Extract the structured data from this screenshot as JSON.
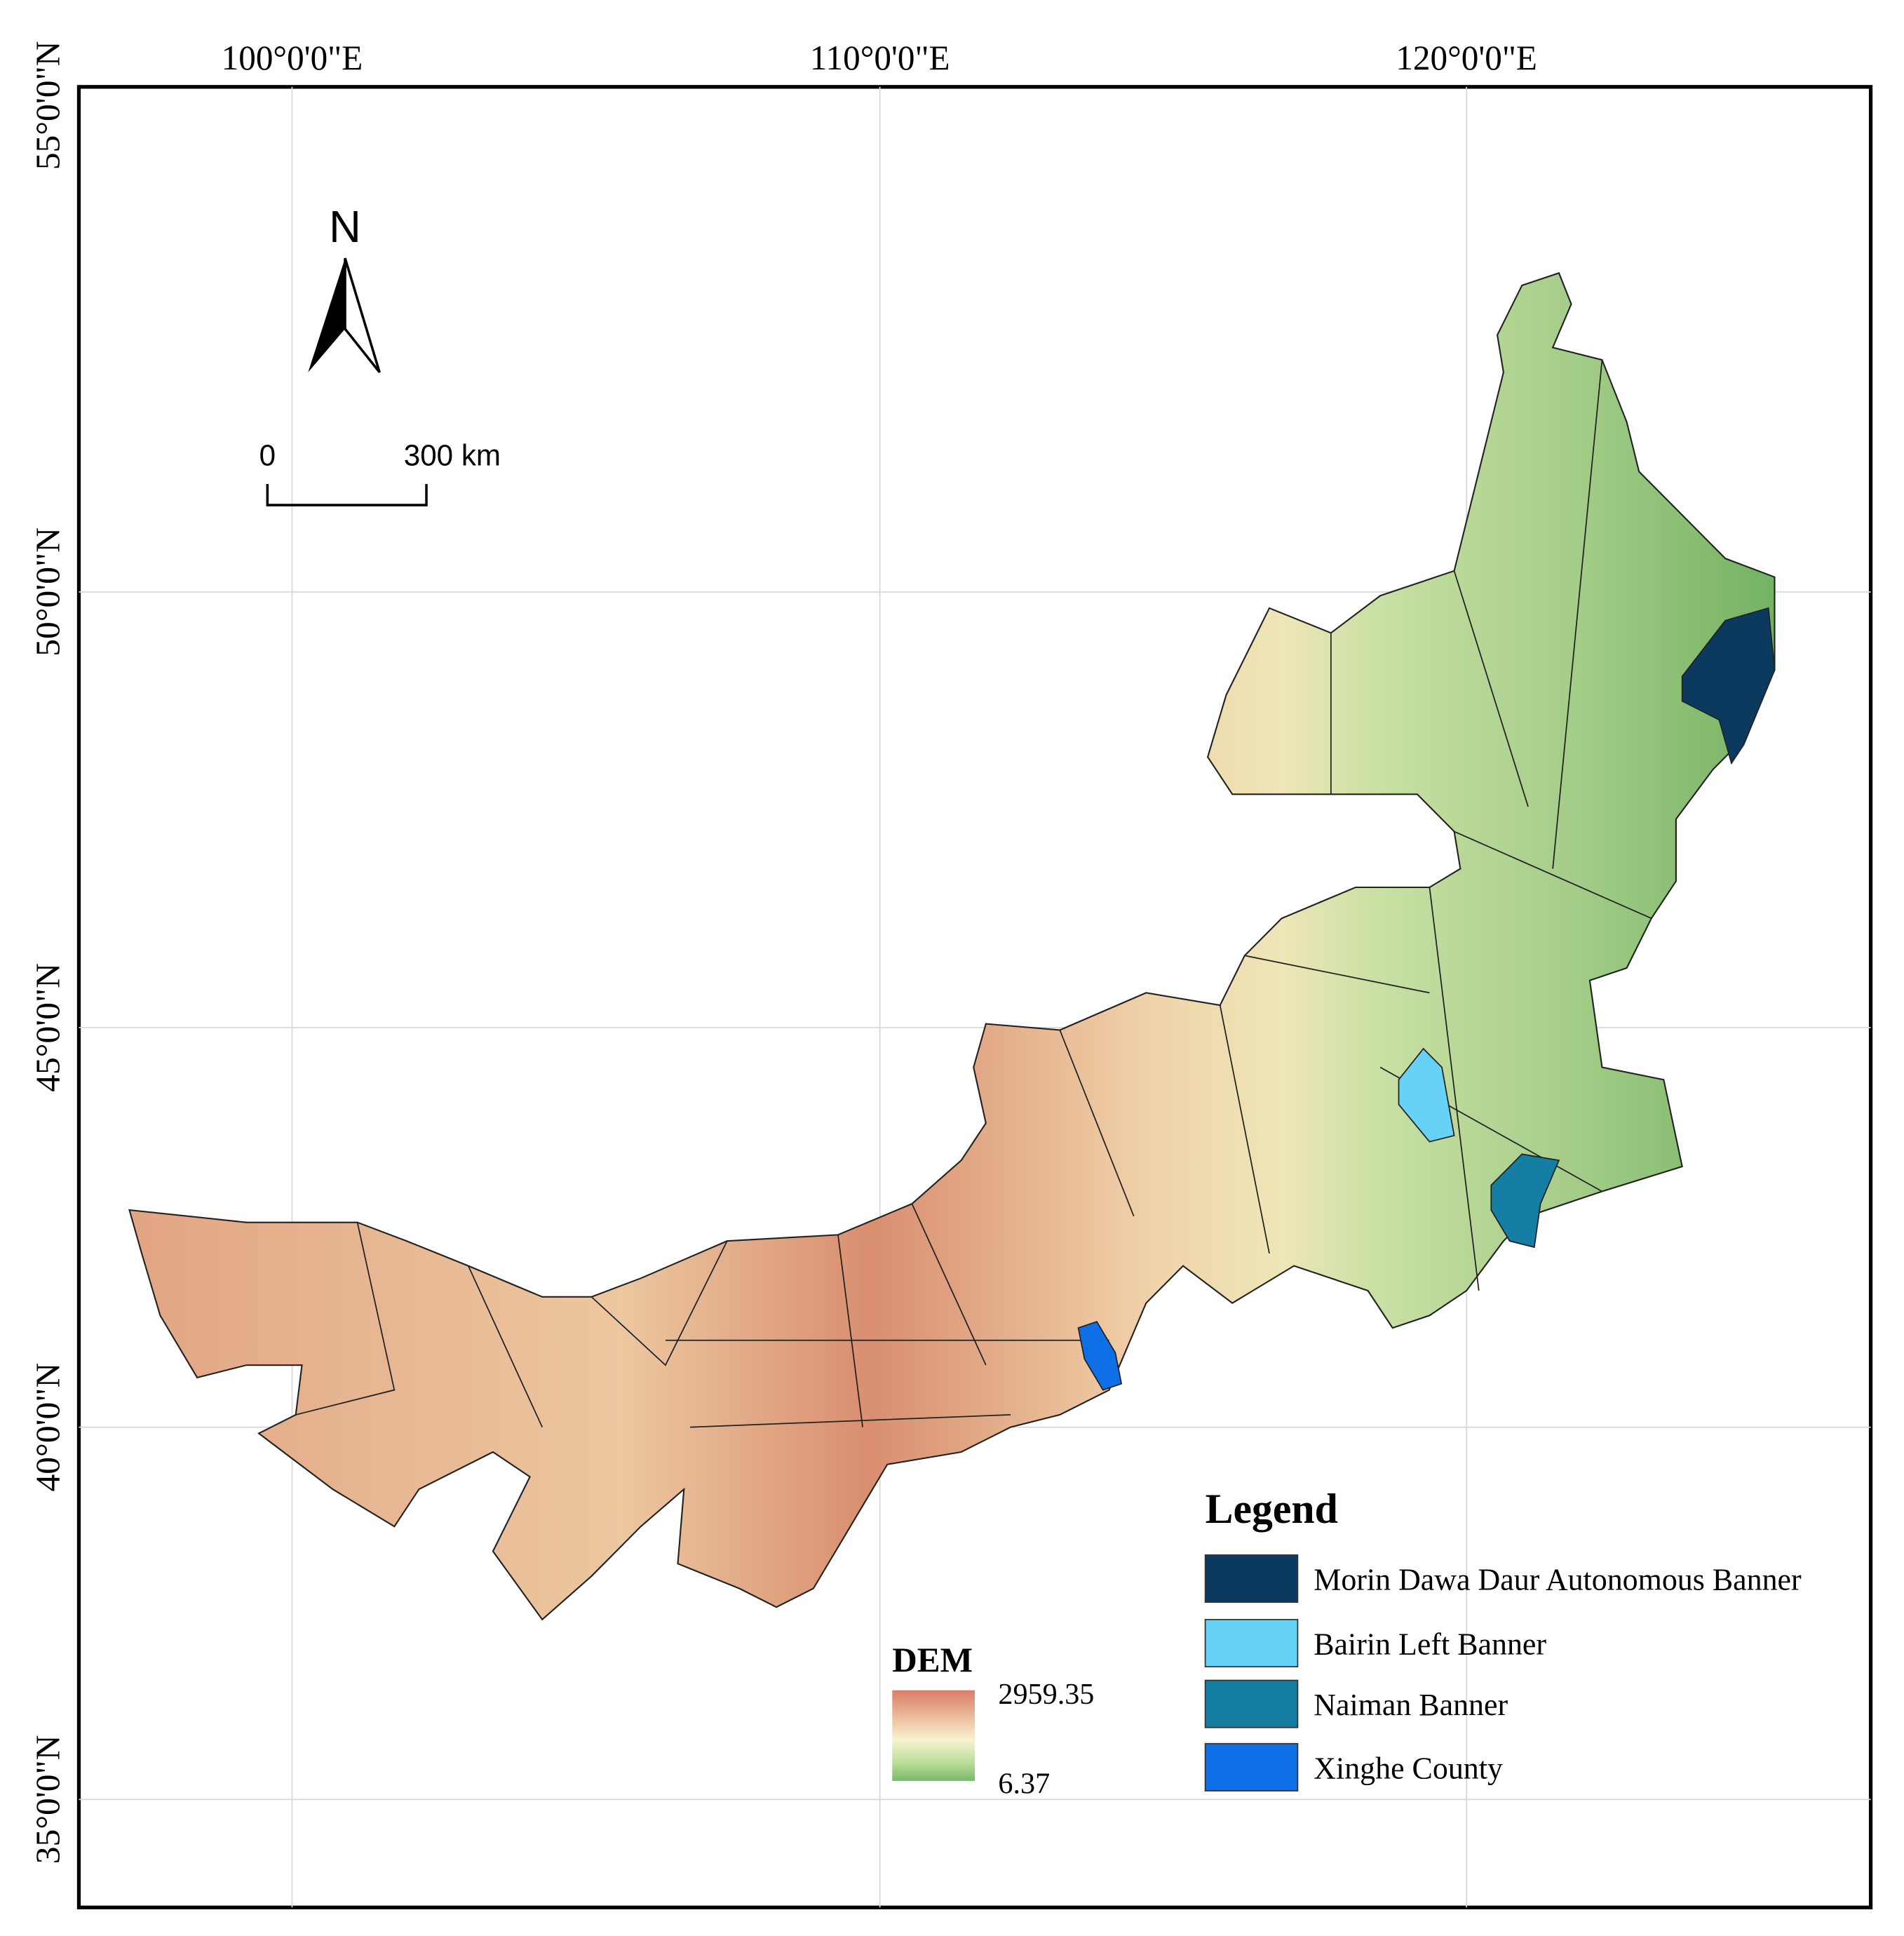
{
  "graticule": {
    "lon_labels": [
      "100°0'0\"E",
      "110°0'0\"E",
      "120°0'0\"E"
    ],
    "lat_labels": [
      "55°0'0\"N",
      "50°0'0\"N",
      "45°0'0\"N",
      "40°0'0\"N",
      "35°0'0\"N"
    ]
  },
  "north_arrow": "N",
  "scale_bar": {
    "start": "0",
    "end": "300 km"
  },
  "dem": {
    "title": "DEM",
    "max": "2959.35",
    "min": "6.37"
  },
  "legend": {
    "title": "Legend",
    "items": [
      {
        "label": "Morin Dawa Daur Autonomous Banner",
        "color": "#0b3a5e"
      },
      {
        "label": "Bairin Left Banner",
        "color": "#66d2f5"
      },
      {
        "label": "Naiman Banner",
        "color": "#147fa3"
      },
      {
        "label": "Xinghe County",
        "color": "#0f6fe6"
      }
    ]
  }
}
